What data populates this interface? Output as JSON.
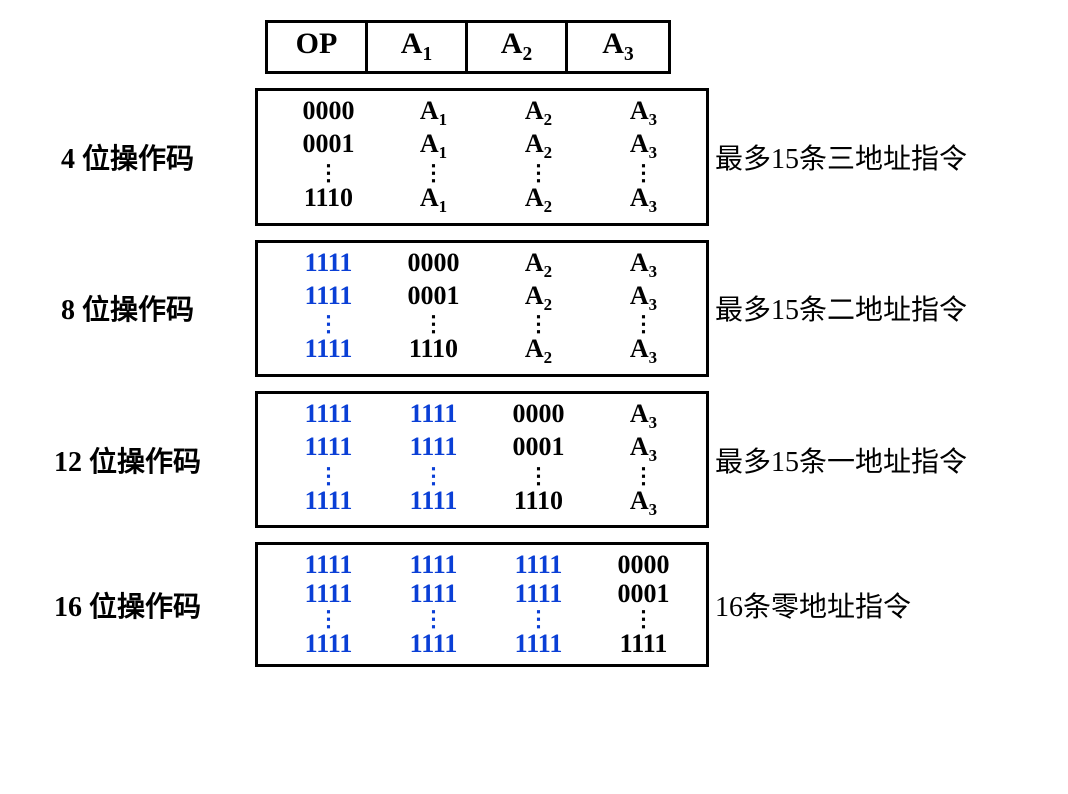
{
  "colors": {
    "black": "#000000",
    "blue": "#0a3fd6",
    "bg": "#ffffff"
  },
  "header": {
    "cells": [
      "OP",
      "A1",
      "A2",
      "A3"
    ]
  },
  "dots": "⋮",
  "groups": [
    {
      "left": "4 位操作码",
      "right": "最多15条三地址指令",
      "rows": [
        [
          {
            "t": "0000",
            "c": "black"
          },
          {
            "t": "A1",
            "c": "black",
            "sub": true
          },
          {
            "t": "A2",
            "c": "black",
            "sub": true
          },
          {
            "t": "A3",
            "c": "black",
            "sub": true
          }
        ],
        [
          {
            "t": "0001",
            "c": "black"
          },
          {
            "t": "A1",
            "c": "black",
            "sub": true
          },
          {
            "t": "A2",
            "c": "black",
            "sub": true
          },
          {
            "t": "A3",
            "c": "black",
            "sub": true
          }
        ]
      ],
      "dot_colors": [
        "black",
        "black",
        "black",
        "black"
      ],
      "last": [
        {
          "t": "1110",
          "c": "black"
        },
        {
          "t": "A1",
          "c": "black",
          "sub": true
        },
        {
          "t": "A2",
          "c": "black",
          "sub": true
        },
        {
          "t": "A3",
          "c": "black",
          "sub": true
        }
      ]
    },
    {
      "left": "8 位操作码",
      "right": "最多15条二地址指令",
      "rows": [
        [
          {
            "t": "1111",
            "c": "blue"
          },
          {
            "t": "0000",
            "c": "black"
          },
          {
            "t": "A2",
            "c": "black",
            "sub": true
          },
          {
            "t": "A3",
            "c": "black",
            "sub": true
          }
        ],
        [
          {
            "t": "1111",
            "c": "blue"
          },
          {
            "t": "0001",
            "c": "black"
          },
          {
            "t": "A2",
            "c": "black",
            "sub": true
          },
          {
            "t": "A3",
            "c": "black",
            "sub": true
          }
        ]
      ],
      "dot_colors": [
        "blue",
        "black",
        "black",
        "black"
      ],
      "last": [
        {
          "t": "1111",
          "c": "blue"
        },
        {
          "t": "1110",
          "c": "black"
        },
        {
          "t": "A2",
          "c": "black",
          "sub": true
        },
        {
          "t": "A3",
          "c": "black",
          "sub": true
        }
      ]
    },
    {
      "left": "12 位操作码",
      "right": "最多15条一地址指令",
      "rows": [
        [
          {
            "t": "1111",
            "c": "blue"
          },
          {
            "t": "1111",
            "c": "blue"
          },
          {
            "t": "0000",
            "c": "black"
          },
          {
            "t": "A3",
            "c": "black",
            "sub": true
          }
        ],
        [
          {
            "t": "1111",
            "c": "blue"
          },
          {
            "t": "1111",
            "c": "blue"
          },
          {
            "t": "0001",
            "c": "black"
          },
          {
            "t": "A3",
            "c": "black",
            "sub": true
          }
        ]
      ],
      "dot_colors": [
        "blue",
        "blue",
        "black",
        "black"
      ],
      "last": [
        {
          "t": "1111",
          "c": "blue"
        },
        {
          "t": "1111",
          "c": "blue"
        },
        {
          "t": "1110",
          "c": "black"
        },
        {
          "t": "A3",
          "c": "black",
          "sub": true
        }
      ]
    },
    {
      "left": "16 位操作码",
      "right": "16条零地址指令",
      "rows": [
        [
          {
            "t": "1111",
            "c": "blue"
          },
          {
            "t": "1111",
            "c": "blue"
          },
          {
            "t": "1111",
            "c": "blue"
          },
          {
            "t": "0000",
            "c": "black"
          }
        ],
        [
          {
            "t": "1111",
            "c": "blue"
          },
          {
            "t": "1111",
            "c": "blue"
          },
          {
            "t": "1111",
            "c": "blue"
          },
          {
            "t": "0001",
            "c": "black"
          }
        ]
      ],
      "dot_colors": [
        "blue",
        "blue",
        "blue",
        "black"
      ],
      "last": [
        {
          "t": "1111",
          "c": "blue"
        },
        {
          "t": "1111",
          "c": "blue"
        },
        {
          "t": "1111",
          "c": "blue"
        },
        {
          "t": "1111",
          "c": "black"
        }
      ]
    }
  ]
}
